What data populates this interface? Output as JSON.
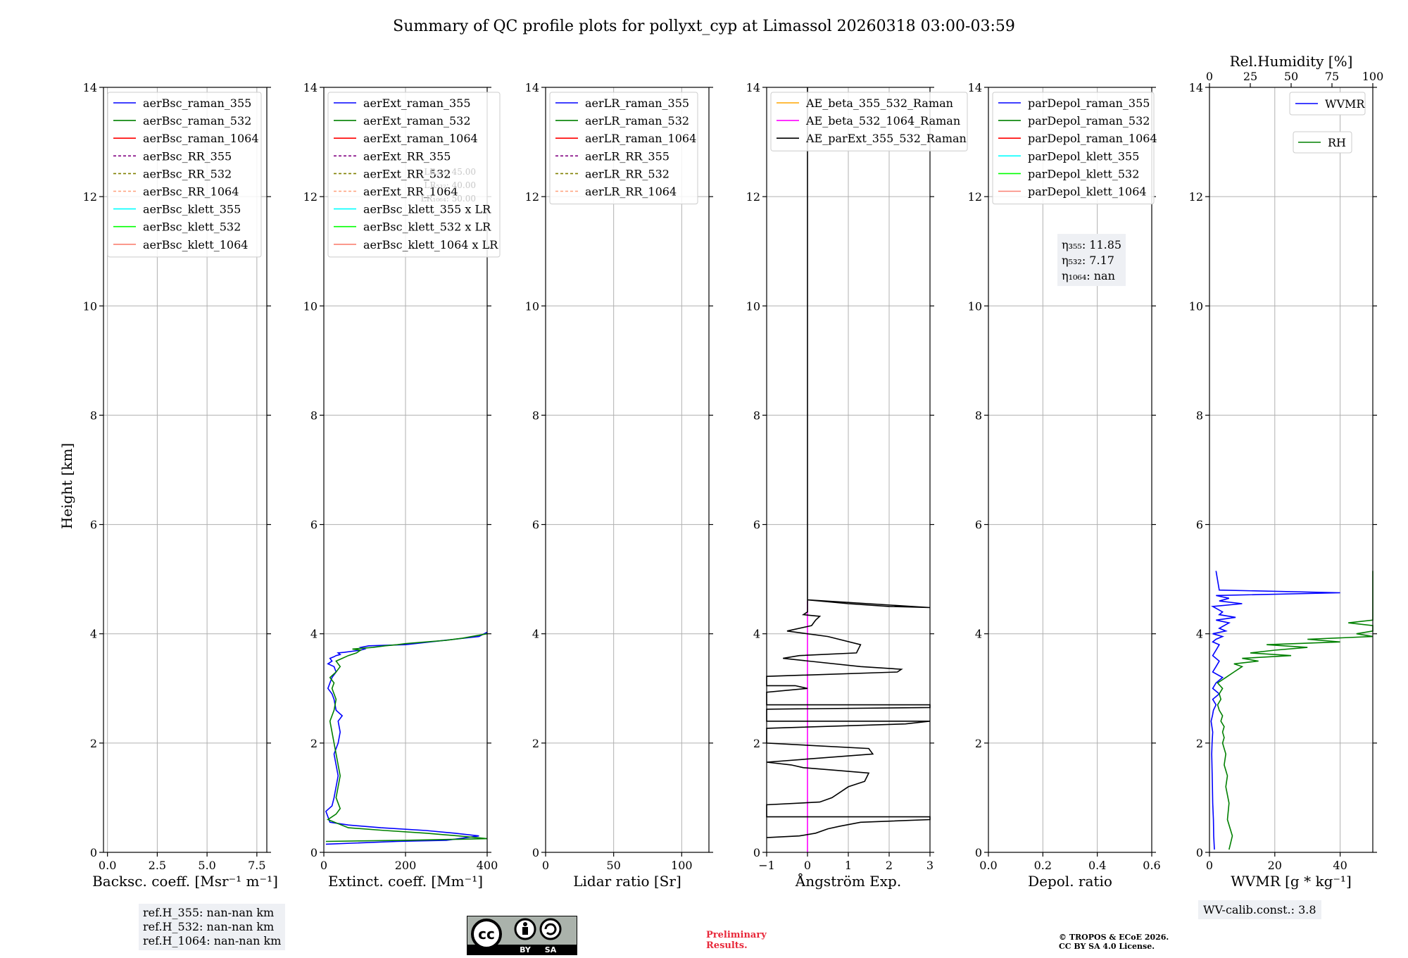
{
  "figure_title": "Summary of QC profile plots for pollyxt_cyp at Limassol 20260318 03:00-03:59",
  "y_axis_label": "Height [km]",
  "y_ticks": [
    "0",
    "2",
    "4",
    "6",
    "8",
    "10",
    "12",
    "14"
  ],
  "chart_data": [
    {
      "type": "line",
      "id": "bsc",
      "xlabel": "Backsc. coeff. [Msr⁻¹ m⁻¹]",
      "xlim": [
        -0.2,
        8.0
      ],
      "ylim": [
        0,
        14
      ],
      "x_ticks": [
        "0.0",
        "2.5",
        "5.0",
        "7.5"
      ],
      "x_tick_values": [
        0,
        2.5,
        5,
        7.5
      ],
      "legend": [
        {
          "label": "aerBsc_raman_355",
          "color": "#0000ff",
          "dash": false
        },
        {
          "label": "aerBsc_raman_532",
          "color": "#008000",
          "dash": false
        },
        {
          "label": "aerBsc_raman_1064",
          "color": "#ff0000",
          "dash": false
        },
        {
          "label": "aerBsc_RR_355",
          "color": "#800080",
          "dash": true
        },
        {
          "label": "aerBsc_RR_532",
          "color": "#808000",
          "dash": true
        },
        {
          "label": "aerBsc_RR_1064",
          "color": "#ffa07a",
          "dash": true
        },
        {
          "label": "aerBsc_klett_355",
          "color": "#00ffff",
          "dash": false
        },
        {
          "label": "aerBsc_klett_532",
          "color": "#00ff00",
          "dash": false
        },
        {
          "label": "aerBsc_klett_1064",
          "color": "#fa8072",
          "dash": false
        }
      ],
      "series": []
    },
    {
      "type": "line",
      "id": "ext",
      "xlabel": "Extinct. coeff. [Mm⁻¹]",
      "xlim": [
        0,
        400
      ],
      "ylim": [
        0,
        14
      ],
      "x_ticks": [
        "0",
        "200",
        "400"
      ],
      "x_tick_values": [
        0,
        200,
        400
      ],
      "legend": [
        {
          "label": "aerExt_raman_355",
          "color": "#0000ff",
          "dash": false
        },
        {
          "label": "aerExt_raman_532",
          "color": "#008000",
          "dash": false
        },
        {
          "label": "aerExt_raman_1064",
          "color": "#ff0000",
          "dash": false
        },
        {
          "label": "aerExt_RR_355",
          "color": "#800080",
          "dash": true
        },
        {
          "label": "aerExt_RR_532",
          "color": "#808000",
          "dash": true
        },
        {
          "label": "aerExt_RR_1064",
          "color": "#ffa07a",
          "dash": true
        },
        {
          "label": "aerBsc_klett_355 x LR",
          "color": "#00ffff",
          "dash": false
        },
        {
          "label": "aerBsc_klett_532 x LR",
          "color": "#00ff00",
          "dash": false
        },
        {
          "label": "aerBsc_klett_1064 x LR",
          "color": "#fa8072",
          "dash": false
        }
      ],
      "faint_annotations": [
        "LR₃₅₅: 45.00",
        "LR₅₃₂: 40.00",
        "LR₁₀₆₄: 50.00"
      ],
      "series": [
        {
          "name": "aerExt_raman_355",
          "color": "#0000ff",
          "x": [
            5,
            180,
            300,
            350,
            380,
            320,
            250,
            140,
            60,
            15,
            5,
            20,
            25,
            30,
            35,
            30,
            25,
            35,
            40,
            35,
            45,
            30,
            25,
            20,
            10,
            15,
            20,
            30,
            25,
            10,
            20,
            15,
            25,
            30,
            40,
            35,
            50,
            70,
            90,
            100,
            90,
            110,
            200,
            260,
            320,
            380,
            400
          ],
          "y": [
            0.15,
            0.2,
            0.22,
            0.27,
            0.3,
            0.35,
            0.4,
            0.45,
            0.5,
            0.55,
            0.75,
            0.85,
            1.0,
            1.2,
            1.4,
            1.6,
            1.8,
            2.0,
            2.2,
            2.4,
            2.5,
            2.6,
            2.8,
            2.9,
            3.0,
            3.1,
            3.2,
            3.3,
            3.4,
            3.45,
            3.5,
            3.55,
            3.58,
            3.6,
            3.62,
            3.65,
            3.66,
            3.68,
            3.7,
            3.72,
            3.75,
            3.78,
            3.8,
            3.85,
            3.9,
            3.95,
            4.03
          ]
        },
        {
          "name": "aerExt_raman_532",
          "color": "#008000",
          "x": [
            5,
            200,
            330,
            400,
            330,
            250,
            150,
            60,
            10,
            30,
            40,
            35,
            30,
            35,
            40,
            35,
            30,
            25,
            20,
            15,
            25,
            30,
            20,
            25,
            15,
            30,
            40,
            30,
            45,
            60,
            80,
            90,
            70,
            120,
            150,
            180,
            200,
            250,
            300,
            340,
            370,
            400
          ],
          "y": [
            0.2,
            0.22,
            0.24,
            0.25,
            0.3,
            0.35,
            0.4,
            0.45,
            0.6,
            0.7,
            0.8,
            0.9,
            1.0,
            1.2,
            1.4,
            1.6,
            1.8,
            2.0,
            2.2,
            2.4,
            2.6,
            2.8,
            3.0,
            3.1,
            3.2,
            3.3,
            3.4,
            3.5,
            3.55,
            3.6,
            3.65,
            3.7,
            3.72,
            3.75,
            3.78,
            3.8,
            3.82,
            3.85,
            3.88,
            3.92,
            3.96,
            4.0
          ]
        }
      ]
    },
    {
      "type": "line",
      "id": "lr",
      "xlabel": "Lidar ratio [Sr]",
      "xlim": [
        0,
        120
      ],
      "ylim": [
        0,
        14
      ],
      "x_ticks": [
        "0",
        "50",
        "100"
      ],
      "x_tick_values": [
        0,
        50,
        100
      ],
      "legend": [
        {
          "label": "aerLR_raman_355",
          "color": "#0000ff",
          "dash": false
        },
        {
          "label": "aerLR_raman_532",
          "color": "#008000",
          "dash": false
        },
        {
          "label": "aerLR_raman_1064",
          "color": "#ff0000",
          "dash": false
        },
        {
          "label": "aerLR_RR_355",
          "color": "#800080",
          "dash": true
        },
        {
          "label": "aerLR_RR_532",
          "color": "#808000",
          "dash": true
        },
        {
          "label": "aerLR_RR_1064",
          "color": "#ffa07a",
          "dash": true
        }
      ],
      "series": []
    },
    {
      "type": "line",
      "id": "ae",
      "xlabel": "Ångström Exp.",
      "xlim": [
        -1,
        3
      ],
      "ylim": [
        0,
        14
      ],
      "x_ticks": [
        "−1",
        "0",
        "1",
        "2",
        "3"
      ],
      "x_tick_values": [
        -1,
        0,
        1,
        2,
        3
      ],
      "legend": [
        {
          "label": "AE_beta_355_532_Raman",
          "color": "#ffa500",
          "dash": false
        },
        {
          "label": "AE_beta_532_1064_Raman",
          "color": "#ff00ff",
          "dash": false
        },
        {
          "label": "AE_parExt_355_532_Raman",
          "color": "#000000",
          "dash": false
        }
      ],
      "series": [
        {
          "name": "AE_beta_532_1064_Raman",
          "color": "#ff00ff",
          "x": [
            0,
            0
          ],
          "y": [
            0,
            4.6
          ]
        },
        {
          "name": "AE_parExt_355_532_Raman",
          "color": "#000000",
          "x": [
            -1,
            -0.2,
            0.2,
            0.5,
            0.8,
            1.3,
            3,
            3,
            -1,
            -1,
            0.3,
            0.6,
            0.8,
            1.0,
            1.4,
            1.5,
            0.7,
            -0.1,
            -0.4,
            -1,
            1.6,
            1.5,
            -1,
            -1,
            2.4,
            3,
            -1,
            -1,
            3,
            3,
            -1,
            -1,
            0,
            -0.3,
            -1,
            -1,
            2.2,
            2.3,
            1.3,
            -0.6,
            -0.2,
            1.2,
            1.3,
            0.5,
            -0.5,
            0.1,
            0.2,
            0.3,
            -0.1,
            0,
            0,
            1,
            2,
            3,
            0,
            0,
            0
          ],
          "y": [
            0.27,
            0.3,
            0.35,
            0.43,
            0.48,
            0.55,
            0.6,
            0.65,
            0.65,
            0.87,
            0.92,
            1.0,
            1.1,
            1.2,
            1.3,
            1.45,
            1.5,
            1.55,
            1.6,
            1.65,
            1.8,
            1.9,
            2.0,
            2.27,
            2.35,
            2.4,
            2.4,
            2.62,
            2.65,
            2.7,
            2.7,
            2.93,
            3.0,
            3.05,
            3.05,
            3.22,
            3.3,
            3.35,
            3.4,
            3.55,
            3.6,
            3.65,
            3.8,
            3.95,
            4.05,
            4.15,
            4.25,
            4.32,
            4.35,
            4.4,
            4.62,
            4.55,
            4.5,
            4.48,
            4.62,
            5.0,
            14.0
          ]
        }
      ]
    },
    {
      "type": "line",
      "id": "depol",
      "xlabel": "Depol. ratio",
      "xlim": [
        0,
        0.6
      ],
      "ylim": [
        0,
        14
      ],
      "x_ticks": [
        "0.0",
        "0.2",
        "0.4",
        "0.6"
      ],
      "x_tick_values": [
        0,
        0.2,
        0.4,
        0.6
      ],
      "legend": [
        {
          "label": "parDepol_raman_355",
          "color": "#0000ff",
          "dash": false
        },
        {
          "label": "parDepol_raman_532",
          "color": "#008000",
          "dash": false
        },
        {
          "label": "parDepol_raman_1064",
          "color": "#ff0000",
          "dash": false
        },
        {
          "label": "parDepol_klett_355",
          "color": "#00ffff",
          "dash": false
        },
        {
          "label": "parDepol_klett_532",
          "color": "#00ff00",
          "dash": false
        },
        {
          "label": "parDepol_klett_1064",
          "color": "#fa8072",
          "dash": false
        }
      ],
      "eta": [
        "η₃₅₅: 11.85",
        "η₅₃₂: 7.17",
        "η₁₀₆₄: nan"
      ],
      "series": []
    },
    {
      "type": "line",
      "id": "wv",
      "xlabel": "WVMR [g * kg⁻¹]",
      "xlim": [
        0,
        50
      ],
      "ylim": [
        0,
        14
      ],
      "x_ticks": [
        "0",
        "20",
        "40"
      ],
      "x_tick_values": [
        0,
        20,
        40
      ],
      "top_xlabel": "Rel.Humidity [%]",
      "top_xlim": [
        0,
        100
      ],
      "top_ticks": [
        "0",
        "25",
        "50",
        "75",
        "100"
      ],
      "top_tick_values": [
        0,
        25,
        50,
        75,
        100
      ],
      "legend": [
        {
          "label": "WVMR",
          "color": "#0000ff",
          "dash": false
        },
        {
          "label": "RH",
          "color": "#008000",
          "dash": false
        }
      ],
      "series": [
        {
          "name": "WVMR",
          "color": "#0000ff",
          "axis": "bottom",
          "x": [
            1.5,
            1.3,
            1.2,
            1.0,
            0.9,
            0.8,
            0.7,
            0.8,
            1.0,
            0.5,
            0.9,
            1.2,
            2,
            1,
            3,
            1,
            2,
            4,
            1,
            2,
            3,
            1,
            2,
            3,
            1,
            2,
            4,
            1,
            5,
            3,
            6,
            2,
            8,
            3,
            4,
            1,
            10,
            3,
            6,
            2,
            40,
            3,
            2
          ],
          "y": [
            0.05,
            0.3,
            0.6,
            0.9,
            1.2,
            1.5,
            1.8,
            2.0,
            2.2,
            2.4,
            2.5,
            2.6,
            2.7,
            2.8,
            2.9,
            3.0,
            3.1,
            3.2,
            3.3,
            3.4,
            3.5,
            3.6,
            3.7,
            3.8,
            3.85,
            3.9,
            3.95,
            4.0,
            4.05,
            4.1,
            4.2,
            4.25,
            4.3,
            4.35,
            4.4,
            4.5,
            4.55,
            4.6,
            4.65,
            4.7,
            4.75,
            4.8,
            5.15
          ]
        },
        {
          "name": "RH",
          "color": "#008000",
          "axis": "top",
          "x": [
            12,
            14,
            11,
            12,
            10,
            11,
            9,
            10,
            8,
            9,
            8,
            9,
            7,
            8,
            6,
            5,
            7,
            6,
            8,
            5,
            10,
            15,
            20,
            15,
            30,
            20,
            50,
            25,
            40,
            60,
            35,
            80,
            60,
            100,
            90,
            100,
            100,
            100,
            85,
            100,
            100,
            100
          ],
          "y": [
            0.05,
            0.3,
            0.6,
            0.9,
            1.2,
            1.4,
            1.6,
            1.8,
            2.0,
            2.1,
            2.2,
            2.3,
            2.4,
            2.5,
            2.6,
            2.7,
            2.8,
            2.9,
            3.0,
            3.1,
            3.2,
            3.3,
            3.4,
            3.45,
            3.5,
            3.55,
            3.6,
            3.65,
            3.7,
            3.75,
            3.8,
            3.85,
            3.9,
            3.95,
            4.0,
            4.05,
            4.1,
            4.15,
            4.2,
            4.25,
            4.3,
            5.15
          ]
        }
      ]
    }
  ],
  "footer": {
    "ref_heights": [
      "ref.H_355: nan-nan km",
      "ref.H_532: nan-nan km",
      "ref.H_1064: nan-nan km"
    ],
    "wv_calib": "WV-calib.const.: 3.8",
    "preliminary": [
      "Preliminary",
      "Results."
    ],
    "copyright": [
      "© TROPOS & ECoE 2026.",
      "CC BY SA 4.0 License."
    ],
    "license_badge": {
      "cc": "cc",
      "by": "BY",
      "sa": "SA"
    }
  }
}
